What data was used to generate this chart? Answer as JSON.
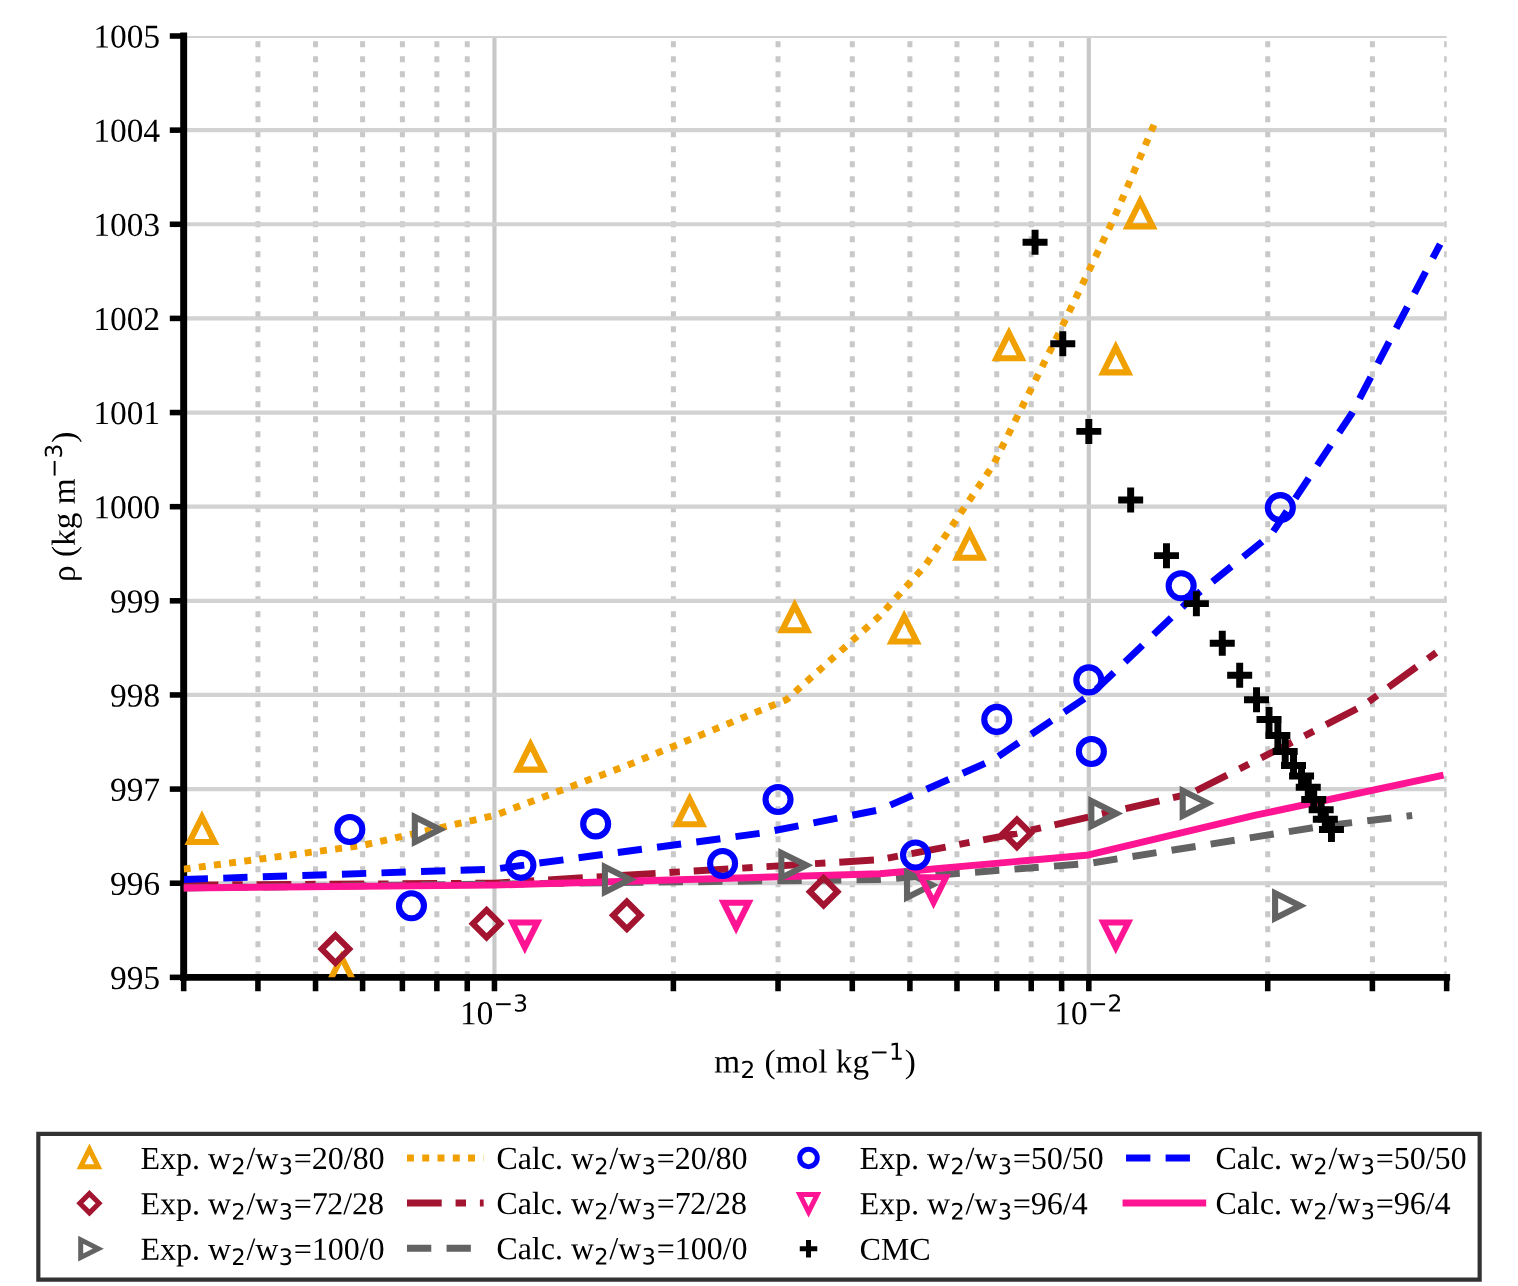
{
  "chart_data": {
    "type": "scatter",
    "xlabel": "m$_{2}$ (mol kg$^{−1}$)",
    "ylabel": "ρ (kg m$^{−3}$)",
    "log": "x",
    "xlim": [
      0.0003,
      0.04
    ],
    "ylim": [
      995,
      1005
    ],
    "xticks": [
      {
        "value": 0.0003,
        "label": null
      },
      {
        "value": 0.0004,
        "label": null
      },
      {
        "value": 0.0005,
        "label": null
      },
      {
        "value": 0.0006,
        "label": null
      },
      {
        "value": 0.0007,
        "label": null
      },
      {
        "value": 0.0008,
        "label": null
      },
      {
        "value": 0.0009,
        "label": null
      },
      {
        "value": 0.001,
        "label": "10$^{−3}$"
      },
      {
        "value": 0.002,
        "label": null
      },
      {
        "value": 0.003,
        "label": null
      },
      {
        "value": 0.004,
        "label": null
      },
      {
        "value": 0.005,
        "label": null
      },
      {
        "value": 0.006,
        "label": null
      },
      {
        "value": 0.007,
        "label": null
      },
      {
        "value": 0.008,
        "label": null
      },
      {
        "value": 0.009,
        "label": null
      },
      {
        "value": 0.01,
        "label": "10$^{−2}$"
      },
      {
        "value": 0.02,
        "label": null
      },
      {
        "value": 0.03,
        "label": null
      },
      {
        "value": 0.04,
        "label": null
      }
    ],
    "yticks": [
      995,
      996,
      997,
      998,
      999,
      1000,
      1001,
      1002,
      1003,
      1004,
      1005
    ],
    "grid": true,
    "legend": "bottom",
    "series": [
      {
        "name": "Exp. w$_{2}$/w$_{3}$=20/80",
        "marker": "triangle",
        "color": "#f0a000",
        "x": [
          0.000322,
          0.000553,
          0.00115,
          0.00213,
          0.0032,
          0.00489,
          0.0063,
          0.00734,
          0.0111,
          0.0122
        ],
        "values": [
          996.57,
          995.08,
          997.34,
          996.76,
          998.82,
          998.7,
          999.59,
          1001.71,
          1001.56,
          1003.11
        ]
      },
      {
        "name": "Exp. w$_{2}$/w$_{3}$=72/28",
        "marker": "diamond",
        "color": "#a2142f",
        "x": [
          0.00054,
          0.00097,
          0.00167,
          0.00358,
          0.00757
        ],
        "values": [
          995.3,
          995.57,
          995.66,
          995.91,
          996.53
        ]
      },
      {
        "name": "Exp. w$_{2}$/w$_{3}$=100/0",
        "marker": "triangle-right",
        "color": "#636363",
        "x": [
          0.000771,
          0.00161,
          0.00319,
          0.00519,
          0.0106,
          0.0151,
          0.0216
        ],
        "values": [
          996.57,
          996.04,
          996.19,
          995.98,
          996.74,
          996.85,
          995.76
        ]
      },
      {
        "name": "Calc. w$_{2}$/w$_{3}$=20/80",
        "type": "line",
        "line_style": "dotted",
        "color": "#f0a000",
        "x": [
          0.0003,
          0.000598,
          0.001,
          0.00167,
          0.0031,
          0.00445,
          0.0053,
          0.0069,
          0.0089,
          0.011,
          0.0129
        ],
        "values": [
          996.15,
          996.4,
          996.72,
          997.25,
          997.95,
          998.84,
          999.37,
          1000.44,
          1001.84,
          1003.05,
          1004.07
        ]
      },
      {
        "name": "Calc. w$_{2}$/w$_{3}$=72/28",
        "type": "line",
        "line_style": "dashdot",
        "color": "#a2142f",
        "x": [
          0.0003,
          0.001,
          0.00445,
          0.00757,
          0.0148,
          0.0214,
          0.029,
          0.039
        ],
        "values": [
          995.98,
          996.0,
          996.25,
          996.53,
          996.95,
          997.46,
          997.89,
          998.48
        ]
      },
      {
        "name": "Calc. w$_{2}$/w$_{3}$=100/0",
        "type": "line",
        "line_style": "dashed",
        "color": "#636363",
        "x": [
          0.0003,
          0.00445,
          0.01,
          0.025,
          0.035
        ],
        "values": [
          995.95,
          996.04,
          996.21,
          996.61,
          996.72
        ]
      },
      {
        "name": "Exp. w$_{2}$/w$_{3}$=50/50",
        "marker": "circle",
        "color": "#0000ff",
        "x": [
          0.000571,
          0.000725,
          0.001108,
          0.00148,
          0.00242,
          0.003,
          0.00511,
          0.007,
          0.01,
          0.0101,
          0.0143,
          0.021
        ],
        "values": [
          996.57,
          995.76,
          996.19,
          996.63,
          996.21,
          996.89,
          996.3,
          997.74,
          998.16,
          997.4,
          999.16,
          999.99
        ]
      },
      {
        "name": "Exp. w$_{2}$/w$_{3}$=96/4",
        "marker": "triangle-down",
        "color": "#ff1493",
        "x": [
          0.001125,
          0.00255,
          0.00548,
          0.0111
        ],
        "values": [
          995.45,
          995.66,
          995.93,
          995.45
        ]
      },
      {
        "name": "CMC",
        "marker": "cross",
        "color": "#000000",
        "x": [
          0.00812,
          0.00904,
          0.01,
          0.01176,
          0.01351,
          0.01517,
          0.01677,
          0.01794,
          0.01915,
          0.0201,
          0.0208,
          0.0214,
          0.0221,
          0.0228,
          0.0234,
          0.0239,
          0.0246,
          0.025,
          0.0256
        ],
        "values": [
          1002.81,
          1001.73,
          1000.8,
          1000.07,
          999.48,
          998.97,
          998.55,
          998.21,
          997.95,
          997.74,
          997.57,
          997.4,
          997.25,
          997.14,
          997.02,
          996.89,
          996.78,
          996.68,
          996.57
        ]
      },
      {
        "name": "Calc. w$_{2}$/w$_{3}$=50/50",
        "type": "line",
        "line_style": "dashed",
        "color": "#0000ff",
        "x": [
          0.0003,
          0.001,
          0.0028,
          0.00445,
          0.0069,
          0.0101,
          0.0148,
          0.0203,
          0.0277,
          0.039
        ],
        "values": [
          996.04,
          996.15,
          996.53,
          996.78,
          997.31,
          998.01,
          999.01,
          999.71,
          1000.99,
          1002.79
        ]
      },
      {
        "name": "Calc. w$_{2}$/w$_{3}$=96/4",
        "type": "line",
        "line_style": "solid",
        "color": "#ff1493",
        "x": [
          0.0003,
          0.001,
          0.00445,
          0.01,
          0.019,
          0.039
        ],
        "values": [
          995.95,
          995.98,
          996.1,
          996.3,
          996.72,
          997.14
        ]
      }
    ]
  }
}
